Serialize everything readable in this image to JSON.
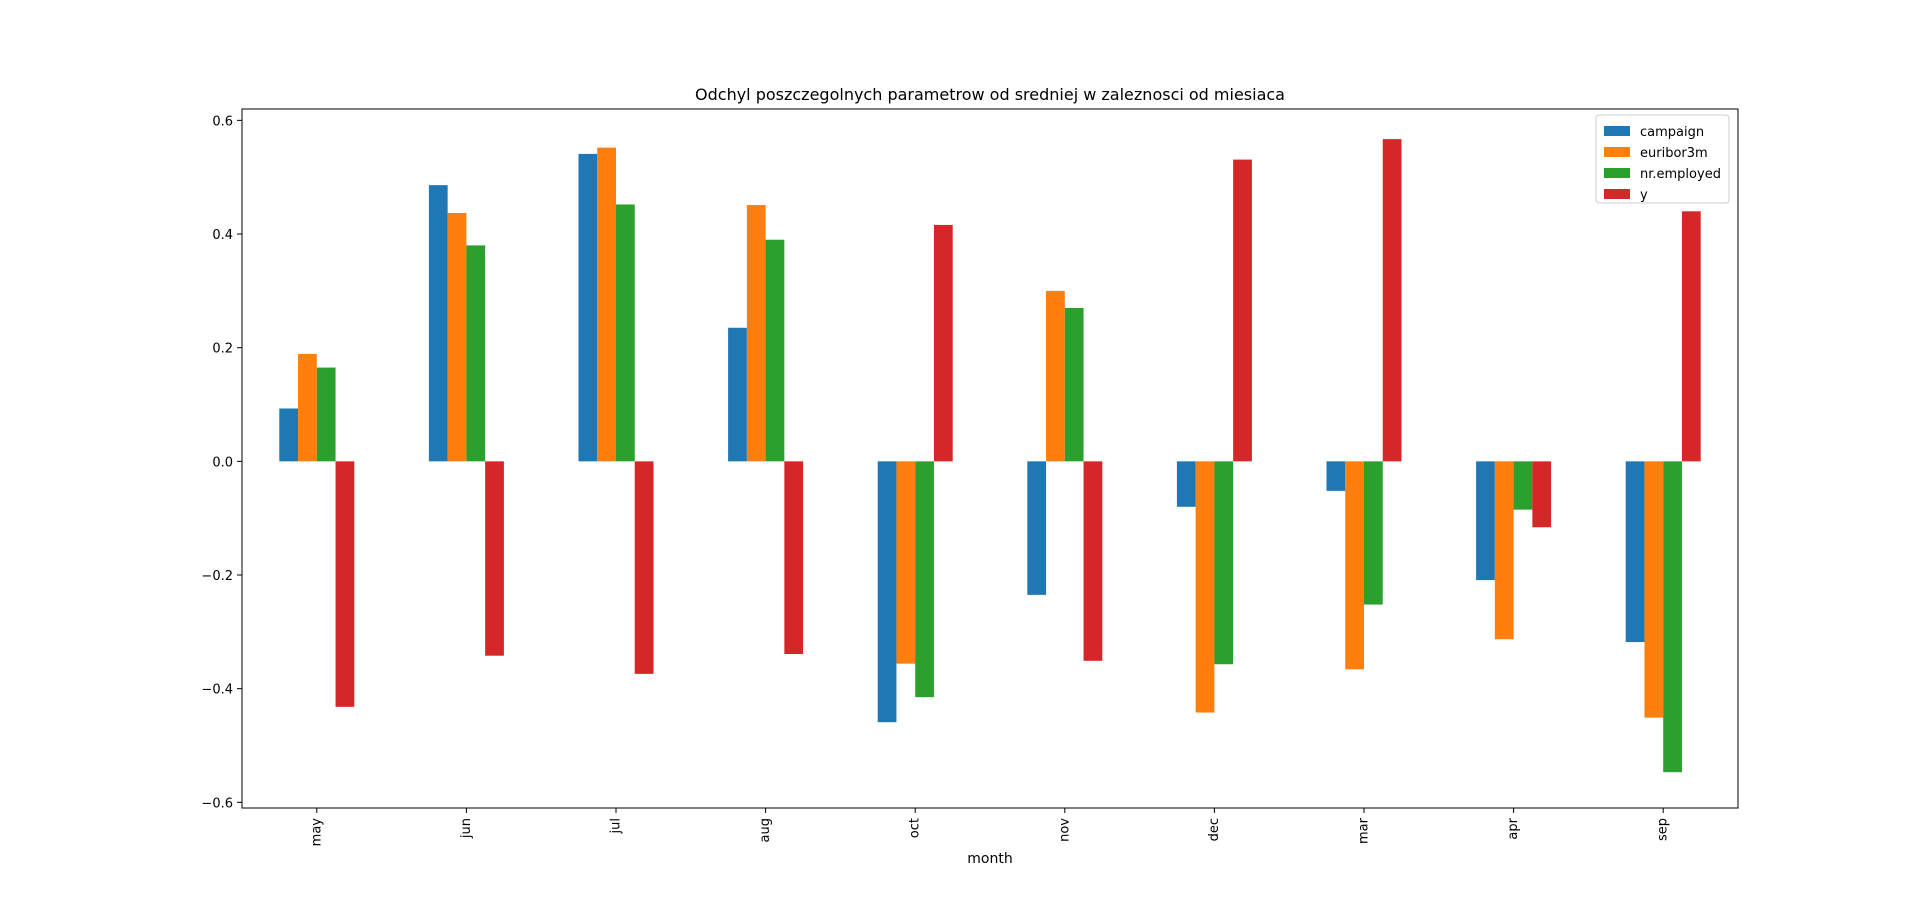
{
  "chart_data": {
    "type": "bar",
    "title": "Odchyl poszczegolnych parametrow od sredniej w zaleznosci od miesiaca",
    "xlabel": "month",
    "ylabel": "",
    "categories": [
      "may",
      "jun",
      "jul",
      "aug",
      "oct",
      "nov",
      "dec",
      "mar",
      "apr",
      "sep"
    ],
    "ylim": [
      -0.61,
      0.62
    ],
    "yticks": [
      -0.6,
      -0.4,
      -0.2,
      0.0,
      0.2,
      0.4,
      0.6
    ],
    "ytick_labels": [
      "−0.6",
      "−0.4",
      "−0.2",
      "0.0",
      "0.2",
      "0.4",
      "0.6"
    ],
    "grid": false,
    "legend_position": "top-right",
    "series": [
      {
        "name": "campaign",
        "color": "#1f77b4",
        "values": [
          0.093,
          0.486,
          0.541,
          0.235,
          -0.459,
          -0.235,
          -0.08,
          -0.052,
          -0.209,
          -0.318
        ]
      },
      {
        "name": "euribor3m",
        "color": "#ff7f0e",
        "values": [
          0.189,
          0.437,
          0.552,
          0.451,
          -0.356,
          0.3,
          -0.442,
          -0.366,
          -0.313,
          -0.451
        ]
      },
      {
        "name": "nr.employed",
        "color": "#2ca02c",
        "values": [
          0.165,
          0.38,
          0.452,
          0.39,
          -0.415,
          0.27,
          -0.357,
          -0.252,
          -0.085,
          -0.547
        ]
      },
      {
        "name": "y",
        "color": "#d62728",
        "values": [
          -0.432,
          -0.342,
          -0.374,
          -0.339,
          0.416,
          -0.351,
          0.531,
          0.567,
          -0.116,
          0.44
        ]
      }
    ]
  }
}
